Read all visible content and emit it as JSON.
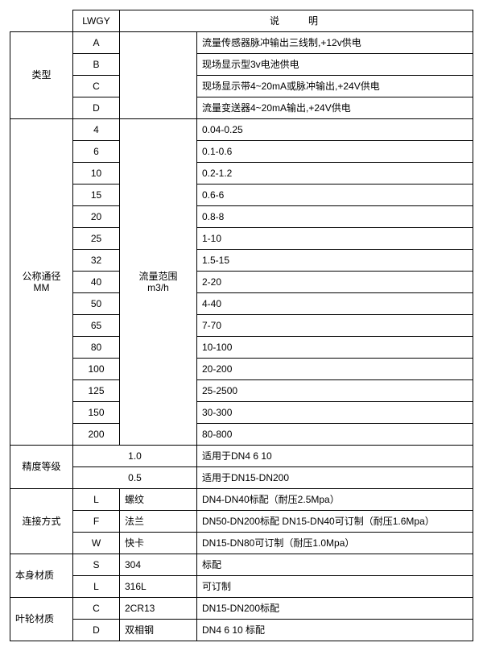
{
  "h": {
    "lwgy": "LWGY",
    "shuoming": "说明"
  },
  "type": {
    "label": "类型",
    "rows": [
      {
        "code": "A",
        "desc": "流量传感器脉冲输出三线制,+12v供电"
      },
      {
        "code": "B",
        "desc": "现场显示型3v电池供电"
      },
      {
        "code": "C",
        "desc": "现场显示带4~20mA或脉冲输出,+24V供电"
      },
      {
        "code": "D",
        "desc": "流量变送器4~20mA输出,+24V供电"
      }
    ]
  },
  "dn": {
    "label1": "公称通径",
    "label2": "MM",
    "range1": "流量范围",
    "range2": "m3/h",
    "rows": [
      {
        "dn": "4",
        "r": "0.04-0.25"
      },
      {
        "dn": "6",
        "r": "0.1-0.6"
      },
      {
        "dn": "10",
        "r": "0.2-1.2"
      },
      {
        "dn": "15",
        "r": "0.6-6"
      },
      {
        "dn": "20",
        "r": "0.8-8"
      },
      {
        "dn": "25",
        "r": "1-10"
      },
      {
        "dn": "32",
        "r": "1.5-15"
      },
      {
        "dn": "40",
        "r": "2-20"
      },
      {
        "dn": "50",
        "r": "4-40"
      },
      {
        "dn": "65",
        "r": "7-70"
      },
      {
        "dn": "80",
        "r": "10-100"
      },
      {
        "dn": "100",
        "r": "20-200"
      },
      {
        "dn": "125",
        "r": "25-2500"
      },
      {
        "dn": "150",
        "r": "30-300"
      },
      {
        "dn": "200",
        "r": "80-800"
      }
    ]
  },
  "acc": {
    "label": "精度等级",
    "rows": [
      {
        "v": "1.0",
        "d": "适用于DN4 6 10"
      },
      {
        "v": "0.5",
        "d": "适用于DN15-DN200"
      }
    ]
  },
  "conn": {
    "label": "连接方式",
    "rows": [
      {
        "c": "L",
        "n": "螺纹",
        "d": "DN4-DN40标配（耐压2.5Mpa）"
      },
      {
        "c": "F",
        "n": "法兰",
        "d": "DN50-DN200标配 DN15-DN40可订制（耐压1.6Mpa）"
      },
      {
        "c": "W",
        "n": "快卡",
        "d": "DN15-DN80可订制（耐压1.0Mpa）"
      }
    ]
  },
  "body": {
    "label": "本身材质",
    "rows": [
      {
        "c": "S",
        "n": "304",
        "d": "标配"
      },
      {
        "c": "L",
        "n": "316L",
        "d": "可订制"
      }
    ]
  },
  "imp": {
    "label": "叶轮材质",
    "rows": [
      {
        "c": "C",
        "n": "2CR13",
        "d": "DN15-DN200标配"
      },
      {
        "c": "D",
        "n": "双相钢",
        "d": "DN4 6 10 标配"
      }
    ]
  }
}
